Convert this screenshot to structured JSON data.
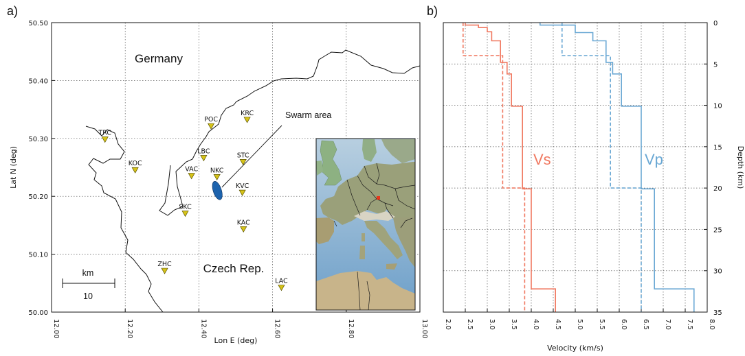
{
  "panel_a": {
    "label": "a)",
    "country_north": "Germany",
    "country_south": "Czech Rep.",
    "swarm_label": "Swarm area",
    "scale_unit": "km",
    "scale_value": "10",
    "inset_marker_color": "#e8361a"
  },
  "panel_b": {
    "label": "b)",
    "vs_label": "Vs",
    "vp_label": "Vp"
  },
  "colors": {
    "vs": "#f07860",
    "vp": "#6aa8d4",
    "station": "#d6c318",
    "swarm": "#1d63ad"
  },
  "chart_data": [
    {
      "type": "scatter",
      "xlabel": "Lon E (deg)",
      "ylabel": "Lat N (deg)",
      "xlim": [
        12.0,
        13.0
      ],
      "ylim": [
        50.0,
        50.5
      ],
      "x_ticks": [
        "12.00",
        "12.20",
        "12.40",
        "12.60",
        "12.80",
        "13.00"
      ],
      "y_ticks": [
        "50.50",
        "50.40",
        "50.30",
        "50.20",
        "50.10",
        "50.00"
      ],
      "grid": true,
      "stations": [
        {
          "name": "TRC",
          "lon": 12.145,
          "lat": 50.298
        },
        {
          "name": "KOC",
          "lon": 12.227,
          "lat": 50.245
        },
        {
          "name": "POC",
          "lon": 12.433,
          "lat": 50.321
        },
        {
          "name": "KRC",
          "lon": 12.531,
          "lat": 50.332
        },
        {
          "name": "LBC",
          "lon": 12.413,
          "lat": 50.266
        },
        {
          "name": "STC",
          "lon": 12.52,
          "lat": 50.259
        },
        {
          "name": "VAC",
          "lon": 12.38,
          "lat": 50.235
        },
        {
          "name": "NKC",
          "lon": 12.449,
          "lat": 50.233
        },
        {
          "name": "KVC",
          "lon": 12.518,
          "lat": 50.206
        },
        {
          "name": "SKC",
          "lon": 12.363,
          "lat": 50.17
        },
        {
          "name": "KAC",
          "lon": 12.521,
          "lat": 50.143
        },
        {
          "name": "ZHC",
          "lon": 12.307,
          "lat": 50.071
        },
        {
          "name": "LAC",
          "lon": 12.624,
          "lat": 50.042
        }
      ],
      "swarm_area": {
        "lon": 12.45,
        "lat": 50.21
      }
    },
    {
      "type": "line",
      "xlabel": "Velocity (km/s)",
      "ylabel": "Depth (km)",
      "xlim": [
        2.0,
        8.0
      ],
      "ylim": [
        35,
        0
      ],
      "x_ticks": [
        "2.0",
        "2.5",
        "3.0",
        "3.5",
        "4.0",
        "4.5",
        "5.0",
        "5.5",
        "6.0",
        "6.5",
        "7.0",
        "7.5",
        "8.0"
      ],
      "y_ticks": [
        "0",
        "5",
        "10",
        "15",
        "20",
        "25",
        "30",
        "35"
      ],
      "grid": true,
      "series": [
        {
          "name": "Vs",
          "style": "solid",
          "velocity": [
            2.5,
            2.5,
            2.8,
            2.8,
            3.0,
            3.0,
            3.1,
            3.1,
            3.3,
            3.3,
            3.45,
            3.45,
            3.55,
            3.55,
            3.8,
            3.8,
            4.0,
            4.0,
            4.55,
            4.55
          ],
          "depth": [
            0,
            0.3,
            0.3,
            0.6,
            0.6,
            1.1,
            1.1,
            2.2,
            2.2,
            4.8,
            4.8,
            6.2,
            6.2,
            10.1,
            10.1,
            20.1,
            20.1,
            32.2,
            32.2,
            35
          ]
        },
        {
          "name": "Vs",
          "style": "dashed",
          "velocity": [
            2.45,
            2.45,
            3.35,
            3.35,
            3.85,
            3.85
          ],
          "depth": [
            0,
            4.0,
            4.0,
            20.0,
            20.0,
            35
          ]
        },
        {
          "name": "Vp",
          "style": "solid",
          "velocity": [
            4.2,
            4.2,
            5.0,
            5.0,
            5.4,
            5.4,
            5.7,
            5.7,
            5.85,
            5.85,
            6.05,
            6.05,
            6.5,
            6.5,
            6.8,
            6.8,
            7.7,
            7.7
          ],
          "depth": [
            0,
            0.3,
            0.3,
            1.2,
            1.2,
            2.2,
            2.2,
            4.8,
            4.8,
            6.2,
            6.2,
            10.1,
            10.1,
            20.1,
            20.1,
            32.2,
            32.2,
            35
          ]
        },
        {
          "name": "Vp",
          "style": "dashed",
          "velocity": [
            4.7,
            4.7,
            5.8,
            5.8,
            6.5,
            6.5
          ],
          "depth": [
            0,
            4.0,
            4.0,
            20.0,
            20.0,
            35
          ]
        }
      ]
    }
  ]
}
